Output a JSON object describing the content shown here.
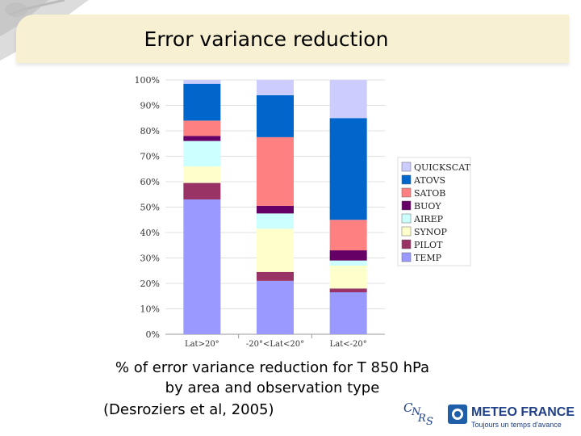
{
  "slide": {
    "title": "Error variance reduction",
    "caption_line1": "% of error variance reduction for T 850 hPa",
    "caption_line2": "by area and observation type",
    "citation": "(Desroziers et al, 2005)"
  },
  "logos": {
    "meteo_france_name": "METEO FRANCE",
    "meteo_france_tagline": "Toujours un temps d'avance",
    "cnrs": "CNRS"
  },
  "colors": {
    "title_bar": "#f7f0d2",
    "brand_blue": "#1f3f88"
  },
  "chart_data": {
    "type": "bar",
    "stacked": true,
    "categories": [
      "Lat>20°",
      "-20°<Lat<20°",
      "Lat<-20°"
    ],
    "yticks": [
      "0%",
      "10%",
      "20%",
      "30%",
      "40%",
      "50%",
      "60%",
      "70%",
      "80%",
      "90%",
      "100%"
    ],
    "ylim": [
      0,
      100
    ],
    "legend_position": "right",
    "series": [
      {
        "name": "TEMP",
        "color": "#9999ff",
        "values": [
          53,
          21,
          16.5
        ]
      },
      {
        "name": "PILOT",
        "color": "#993366",
        "values": [
          6.5,
          3.5,
          1.5
        ]
      },
      {
        "name": "SYNOP",
        "color": "#ffffcc",
        "values": [
          6.5,
          17,
          9
        ]
      },
      {
        "name": "AIREP",
        "color": "#ccffff",
        "values": [
          10,
          6,
          2
        ]
      },
      {
        "name": "BUOY",
        "color": "#660066",
        "values": [
          2,
          3,
          4
        ]
      },
      {
        "name": "SATOB",
        "color": "#ff8080",
        "values": [
          6,
          27,
          12
        ]
      },
      {
        "name": "ATOVS",
        "color": "#0066cc",
        "values": [
          14.5,
          16.5,
          40
        ]
      },
      {
        "name": "QUICKSCAT",
        "color": "#ccccff",
        "values": [
          1.5,
          6,
          15
        ]
      }
    ]
  }
}
